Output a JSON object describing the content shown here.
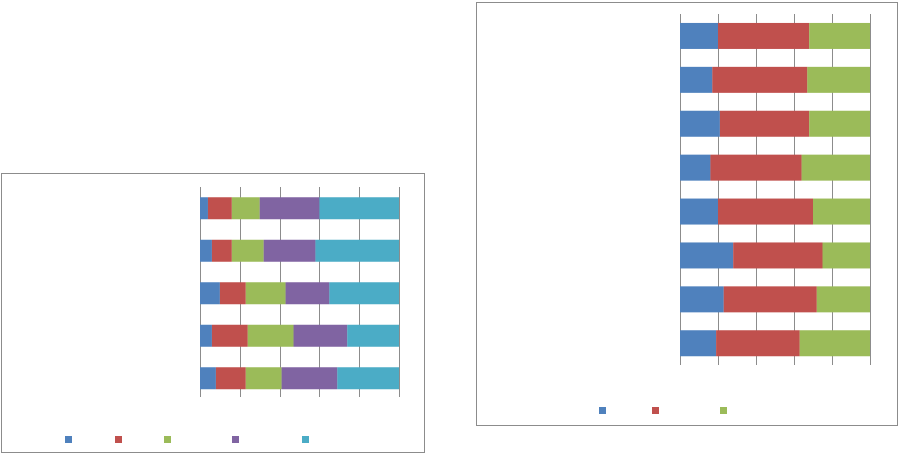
{
  "colors": {
    "blue": "#4f81bd",
    "red": "#c0504d",
    "green": "#9bbb59",
    "purple": "#8064a2",
    "teal": "#4bacc6",
    "frame": "#8c8c8c",
    "grid": "#8c8c8c"
  },
  "chart_data": [
    {
      "type": "bar",
      "orientation": "horizontal",
      "stacked": "percent",
      "title": "",
      "categories": [
        "",
        "",
        "",
        "",
        ""
      ],
      "series": [
        {
          "color": "#4f81bd",
          "values": [
            4,
            6,
            10,
            6,
            8
          ]
        },
        {
          "color": "#c0504d",
          "values": [
            12,
            10,
            13,
            18,
            15
          ]
        },
        {
          "color": "#9bbb59",
          "values": [
            14,
            16,
            20,
            23,
            18
          ]
        },
        {
          "color": "#8064a2",
          "values": [
            30,
            26,
            22,
            27,
            28
          ]
        },
        {
          "color": "#4bacc6",
          "values": [
            40,
            42,
            35,
            26,
            31
          ]
        }
      ],
      "xlim": [
        0,
        100
      ],
      "gridlines": [
        0,
        20,
        40,
        60,
        80,
        100
      ],
      "grid": true,
      "legend": "bottom"
    },
    {
      "type": "bar",
      "orientation": "horizontal",
      "stacked": "percent",
      "title": "",
      "categories": [
        "",
        "",
        "",
        "",
        "",
        "",
        "",
        ""
      ],
      "series": [
        {
          "color": "#4f81bd",
          "values": [
            20,
            17,
            21,
            16,
            20,
            28,
            23,
            19
          ]
        },
        {
          "color": "#c0504d",
          "values": [
            48,
            50,
            47,
            48,
            50,
            47,
            49,
            44
          ]
        },
        {
          "color": "#9bbb59",
          "values": [
            32,
            33,
            32,
            36,
            30,
            25,
            28,
            37
          ]
        }
      ],
      "xlim": [
        0,
        100
      ],
      "gridlines": [
        0,
        20,
        40,
        60,
        80,
        100
      ],
      "grid": true,
      "legend": "bottom"
    }
  ]
}
